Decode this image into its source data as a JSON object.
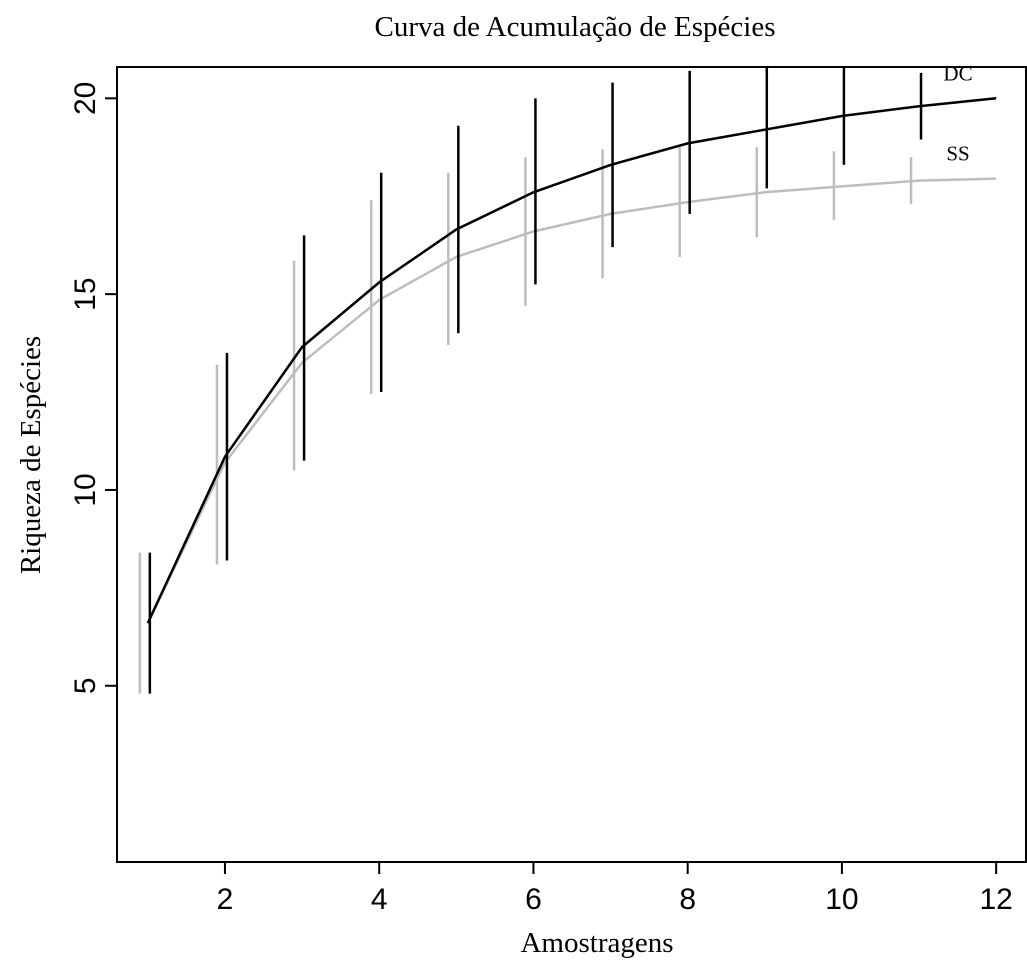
{
  "chart_data": {
    "type": "line",
    "title": "Curva de Acumulação de Espécies",
    "xlabel": "Amostragens",
    "ylabel": "Riqueza de Espécies",
    "xlim": [
      0.6,
      12.4
    ],
    "ylim": [
      0.5,
      20.8
    ],
    "xticks": [
      2,
      4,
      6,
      8,
      10,
      12
    ],
    "yticks": [
      5,
      10,
      15,
      20
    ],
    "grid": false,
    "legend": "none",
    "series": [
      {
        "name": "DC",
        "color": "#000000",
        "x": [
          1,
          2,
          3,
          4,
          5,
          6,
          7,
          8,
          9,
          10,
          11,
          12
        ],
        "y": [
          6.6,
          10.85,
          13.65,
          15.3,
          16.65,
          17.6,
          18.3,
          18.85,
          19.2,
          19.55,
          19.8,
          20.0
        ],
        "err_low": [
          4.8,
          8.2,
          10.75,
          12.5,
          14.0,
          15.25,
          16.2,
          17.05,
          17.7,
          18.3,
          18.95,
          20.0
        ],
        "err_high": [
          8.4,
          13.5,
          16.5,
          18.1,
          19.3,
          20.0,
          20.4,
          20.7,
          20.8,
          20.8,
          20.65,
          20.0
        ]
      },
      {
        "name": "SS",
        "color": "#bdbdbd",
        "x": [
          1,
          2,
          3,
          4,
          5,
          6,
          7,
          8,
          9,
          10,
          11,
          12
        ],
        "y": [
          6.6,
          10.7,
          13.25,
          14.85,
          15.95,
          16.6,
          17.05,
          17.35,
          17.6,
          17.75,
          17.9,
          17.95
        ],
        "err_low": [
          4.8,
          8.1,
          10.5,
          12.45,
          13.7,
          14.7,
          15.4,
          15.95,
          16.45,
          16.9,
          17.3,
          17.95
        ],
        "err_high": [
          8.4,
          13.2,
          15.85,
          17.4,
          18.1,
          18.5,
          18.7,
          18.75,
          18.75,
          18.65,
          18.5,
          17.95
        ]
      }
    ]
  }
}
